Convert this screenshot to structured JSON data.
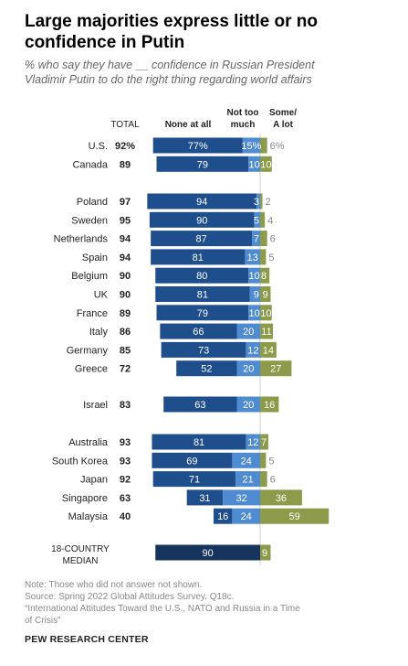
{
  "title": "Large majorities express little or no confidence in Putin",
  "subtitle": "% who say they have __ confidence in Russian President Vladimir Putin to do the right thing regarding world affairs",
  "colors": {
    "none_at_all": "#1f4e8c",
    "not_too_much": "#4f8bd0",
    "some_a_lot": "#8d9a4a",
    "median_dark": "#17345e",
    "label_gray": "#888888"
  },
  "chart_data": {
    "type": "bar",
    "orientation": "horizontal-diverging",
    "column_headers": {
      "total": "TOTAL",
      "none_at_all": "None at all",
      "not_too_much": "Not too much",
      "some_a_lot": "Some/ A lot"
    },
    "series_names": [
      "None at all",
      "Not too much",
      "Some/ A lot"
    ],
    "rows": [
      {
        "country": "U.S.",
        "total": "92%",
        "none": 77,
        "none_label": "77%",
        "not_too_much": 15,
        "ntm_label": "15%",
        "some": 6,
        "some_label": "6%",
        "group": 0
      },
      {
        "country": "Canada",
        "total": "89",
        "none": 79,
        "none_label": "79",
        "not_too_much": 10,
        "ntm_label": "10",
        "some": 10,
        "some_label": "10",
        "group": 0
      },
      {
        "country": "Poland",
        "total": "97",
        "none": 94,
        "none_label": "94",
        "not_too_much": 3,
        "ntm_label": "3",
        "some": 2,
        "some_label": "2",
        "group": 1
      },
      {
        "country": "Sweden",
        "total": "95",
        "none": 90,
        "none_label": "90",
        "not_too_much": 5,
        "ntm_label": "5",
        "some": 4,
        "some_label": "4",
        "group": 1
      },
      {
        "country": "Netherlands",
        "total": "94",
        "none": 87,
        "none_label": "87",
        "not_too_much": 7,
        "ntm_label": "7",
        "some": 6,
        "some_label": "6",
        "group": 1
      },
      {
        "country": "Spain",
        "total": "94",
        "none": 81,
        "none_label": "81",
        "not_too_much": 13,
        "ntm_label": "13",
        "some": 5,
        "some_label": "5",
        "group": 1
      },
      {
        "country": "Belgium",
        "total": "90",
        "none": 80,
        "none_label": "80",
        "not_too_much": 10,
        "ntm_label": "10",
        "some": 8,
        "some_label": "8",
        "group": 1
      },
      {
        "country": "UK",
        "total": "90",
        "none": 81,
        "none_label": "81",
        "not_too_much": 9,
        "ntm_label": "9",
        "some": 9,
        "some_label": "9",
        "group": 1
      },
      {
        "country": "France",
        "total": "89",
        "none": 79,
        "none_label": "79",
        "not_too_much": 10,
        "ntm_label": "10",
        "some": 10,
        "some_label": "10",
        "group": 1
      },
      {
        "country": "Italy",
        "total": "86",
        "none": 66,
        "none_label": "66",
        "not_too_much": 20,
        "ntm_label": "20",
        "some": 11,
        "some_label": "11",
        "group": 1
      },
      {
        "country": "Germany",
        "total": "85",
        "none": 73,
        "none_label": "73",
        "not_too_much": 12,
        "ntm_label": "12",
        "some": 14,
        "some_label": "14",
        "group": 1
      },
      {
        "country": "Greece",
        "total": "72",
        "none": 52,
        "none_label": "52",
        "not_too_much": 20,
        "ntm_label": "20",
        "some": 27,
        "some_label": "27",
        "group": 1
      },
      {
        "country": "Israel",
        "total": "83",
        "none": 63,
        "none_label": "63",
        "not_too_much": 20,
        "ntm_label": "20",
        "some": 16,
        "some_label": "16",
        "group": 2
      },
      {
        "country": "Australia",
        "total": "93",
        "none": 81,
        "none_label": "81",
        "not_too_much": 12,
        "ntm_label": "12",
        "some": 7,
        "some_label": "7",
        "group": 3
      },
      {
        "country": "South Korea",
        "total": "93",
        "none": 69,
        "none_label": "69",
        "not_too_much": 24,
        "ntm_label": "24",
        "some": 5,
        "some_label": "5",
        "group": 3
      },
      {
        "country": "Japan",
        "total": "92",
        "none": 71,
        "none_label": "71",
        "not_too_much": 21,
        "ntm_label": "21",
        "some": 6,
        "some_label": "6",
        "group": 3
      },
      {
        "country": "Singapore",
        "total": "63",
        "none": 31,
        "none_label": "31",
        "not_too_much": 32,
        "ntm_label": "32",
        "some": 36,
        "some_label": "36",
        "group": 3
      },
      {
        "country": "Malaysia",
        "total": "40",
        "none": 16,
        "none_label": "16",
        "not_too_much": 24,
        "ntm_label": "24",
        "some": 59,
        "some_label": "59",
        "group": 3
      }
    ],
    "median": {
      "label_line1": "18-COUNTRY",
      "label_line2": "MEDIAN",
      "combined": 90,
      "combined_label": "90",
      "some": 9,
      "some_label": "9"
    }
  },
  "notes": {
    "note": "Note: Those who did not answer not shown.",
    "source": "Source: Spring 2022 Global Attitudes Survey. Q18c.",
    "report_line1": "“International Attitudes Toward the U.S., NATO and Russia in a Time",
    "report_line2": "of Crisis”"
  },
  "footer": "PEW RESEARCH CENTER"
}
